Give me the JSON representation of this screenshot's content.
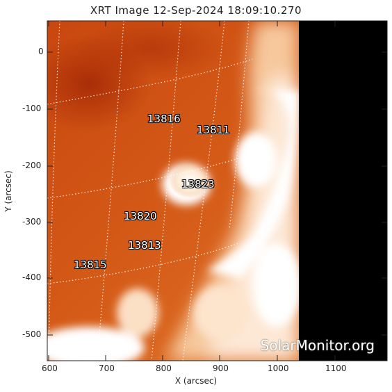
{
  "title": "XRT Image 12-Sep-2024 18:09:10.270",
  "axes": {
    "xlabel": "X (arcsec)",
    "ylabel": "Y (arcsec)",
    "xticks": [
      "600",
      "700",
      "800",
      "900",
      "1000",
      "1100"
    ],
    "yticks": [
      "0",
      "-100",
      "-200",
      "-300",
      "-400",
      "-500"
    ]
  },
  "active_regions": [
    "13816",
    "13811",
    "13823",
    "13820",
    "13813",
    "13815"
  ],
  "watermark": "SolarMonitor.org",
  "colors": {
    "dark_orange": "#b8360a",
    "mid_orange": "#d9661f",
    "light_orange": "#f0a869",
    "white": "#ffffff",
    "offlimb": "#000000"
  }
}
